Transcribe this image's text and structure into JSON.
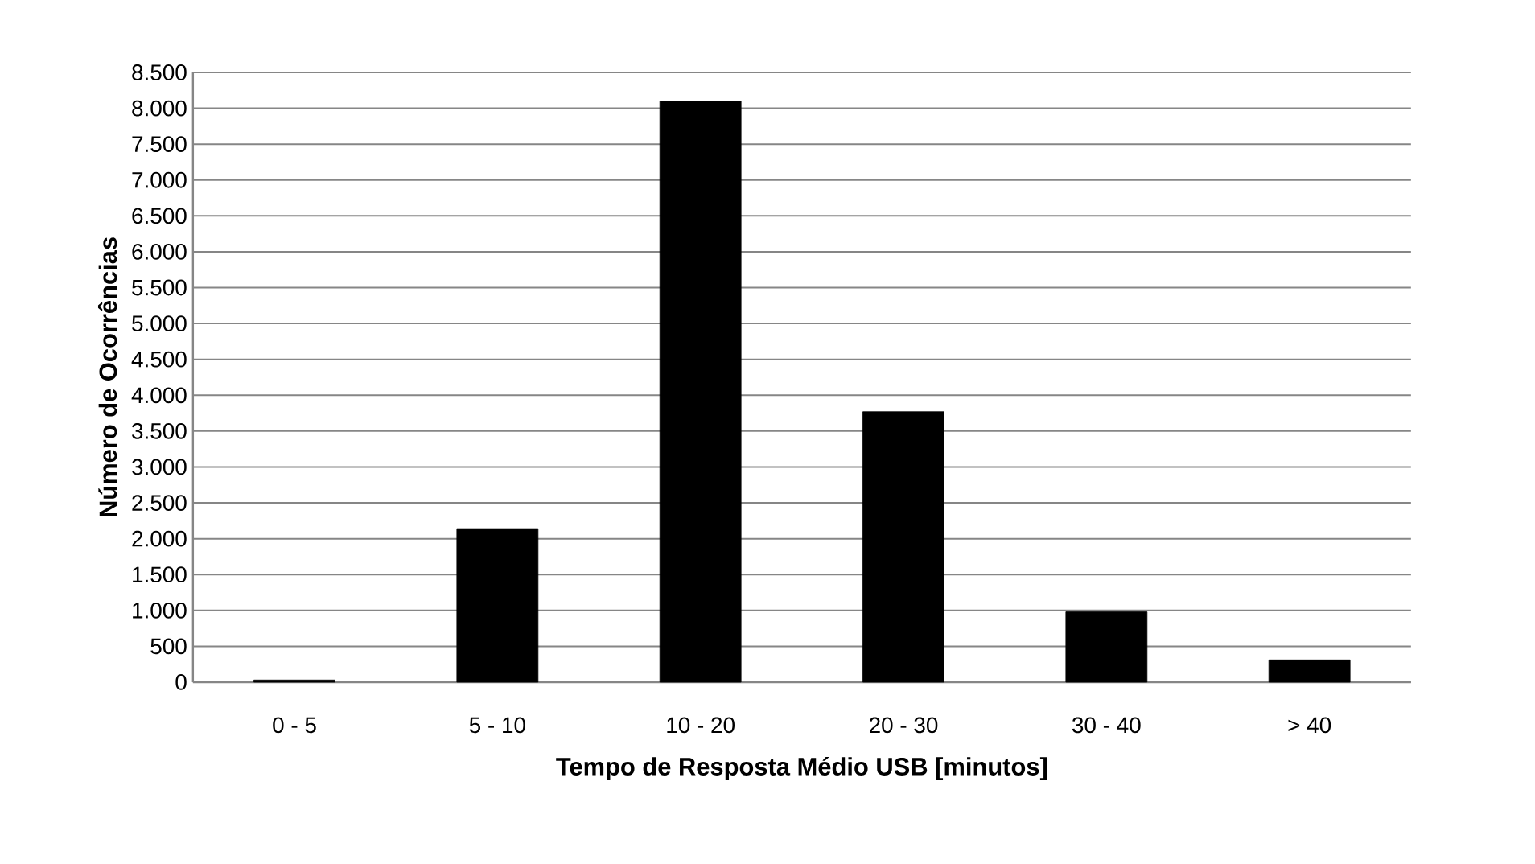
{
  "chart_data": {
    "type": "bar",
    "xlabel": "Tempo de Resposta Médio USB [minutos]",
    "ylabel": "Número de Ocorrências",
    "categories": [
      "0 - 5",
      "5 - 10",
      "10 - 20",
      "20 - 30",
      "30 - 40",
      "> 40"
    ],
    "values": [
      30,
      2140,
      8100,
      3770,
      980,
      310
    ],
    "color": "#000000",
    "ylim": [
      0,
      8500
    ],
    "yticks": [
      0,
      500,
      {
        "value": 1000,
        "label": "1.000"
      },
      {
        "value": 1500,
        "label": "1.500"
      },
      {
        "value": 2000,
        "label": "2.000"
      },
      {
        "value": 2500,
        "label": "2.500"
      },
      {
        "value": 3000,
        "label": "3.000"
      },
      {
        "value": 3500,
        "label": "3.500"
      },
      {
        "value": 4000,
        "label": "4.000"
      },
      {
        "value": 4500,
        "label": "4.500"
      },
      {
        "value": 5000,
        "label": "5.000"
      },
      {
        "value": 5500,
        "label": "5.500"
      },
      {
        "value": 6000,
        "label": "6.000"
      },
      {
        "value": 6500,
        "label": "6.500"
      },
      {
        "value": 7000,
        "label": "7.000"
      },
      {
        "value": 7500,
        "label": "7.500"
      },
      {
        "value": 8000,
        "label": "8.000"
      },
      {
        "value": 8500,
        "label": "8.500"
      }
    ],
    "grid": "y"
  }
}
